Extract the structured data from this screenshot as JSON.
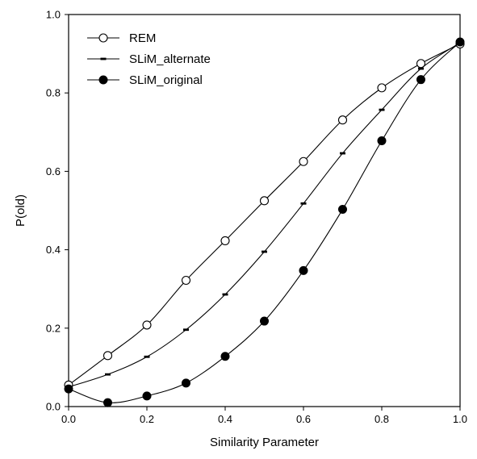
{
  "chart_data": {
    "type": "line",
    "title": "",
    "xlabel": "Similarity Parameter",
    "ylabel": "P(old)",
    "xlim": [
      0.0,
      1.0
    ],
    "ylim": [
      0.0,
      1.0
    ],
    "x_ticks": [
      "0.0",
      "0.2",
      "0.4",
      "0.6",
      "0.8",
      "1.0"
    ],
    "y_ticks": [
      "0.0",
      "0.2",
      "0.4",
      "0.6",
      "0.8",
      "1.0"
    ],
    "grid": false,
    "legend_position": "top-left",
    "x": [
      0.0,
      0.1,
      0.2,
      0.3,
      0.4,
      0.5,
      0.6,
      0.7,
      0.8,
      0.9,
      1.0
    ],
    "series": [
      {
        "name": "REM",
        "marker": "open-circle",
        "values": [
          0.055,
          0.13,
          0.208,
          0.322,
          0.423,
          0.525,
          0.625,
          0.731,
          0.813,
          0.875,
          0.925
        ]
      },
      {
        "name": "SLiM_alternate",
        "marker": "dash",
        "values": [
          0.05,
          0.082,
          0.127,
          0.196,
          0.286,
          0.395,
          0.518,
          0.646,
          0.757,
          0.862,
          0.928
        ]
      },
      {
        "name": "SLiM_original",
        "marker": "filled-circle",
        "values": [
          0.045,
          0.01,
          0.027,
          0.06,
          0.128,
          0.218,
          0.347,
          0.503,
          0.678,
          0.834,
          0.93
        ]
      }
    ]
  }
}
